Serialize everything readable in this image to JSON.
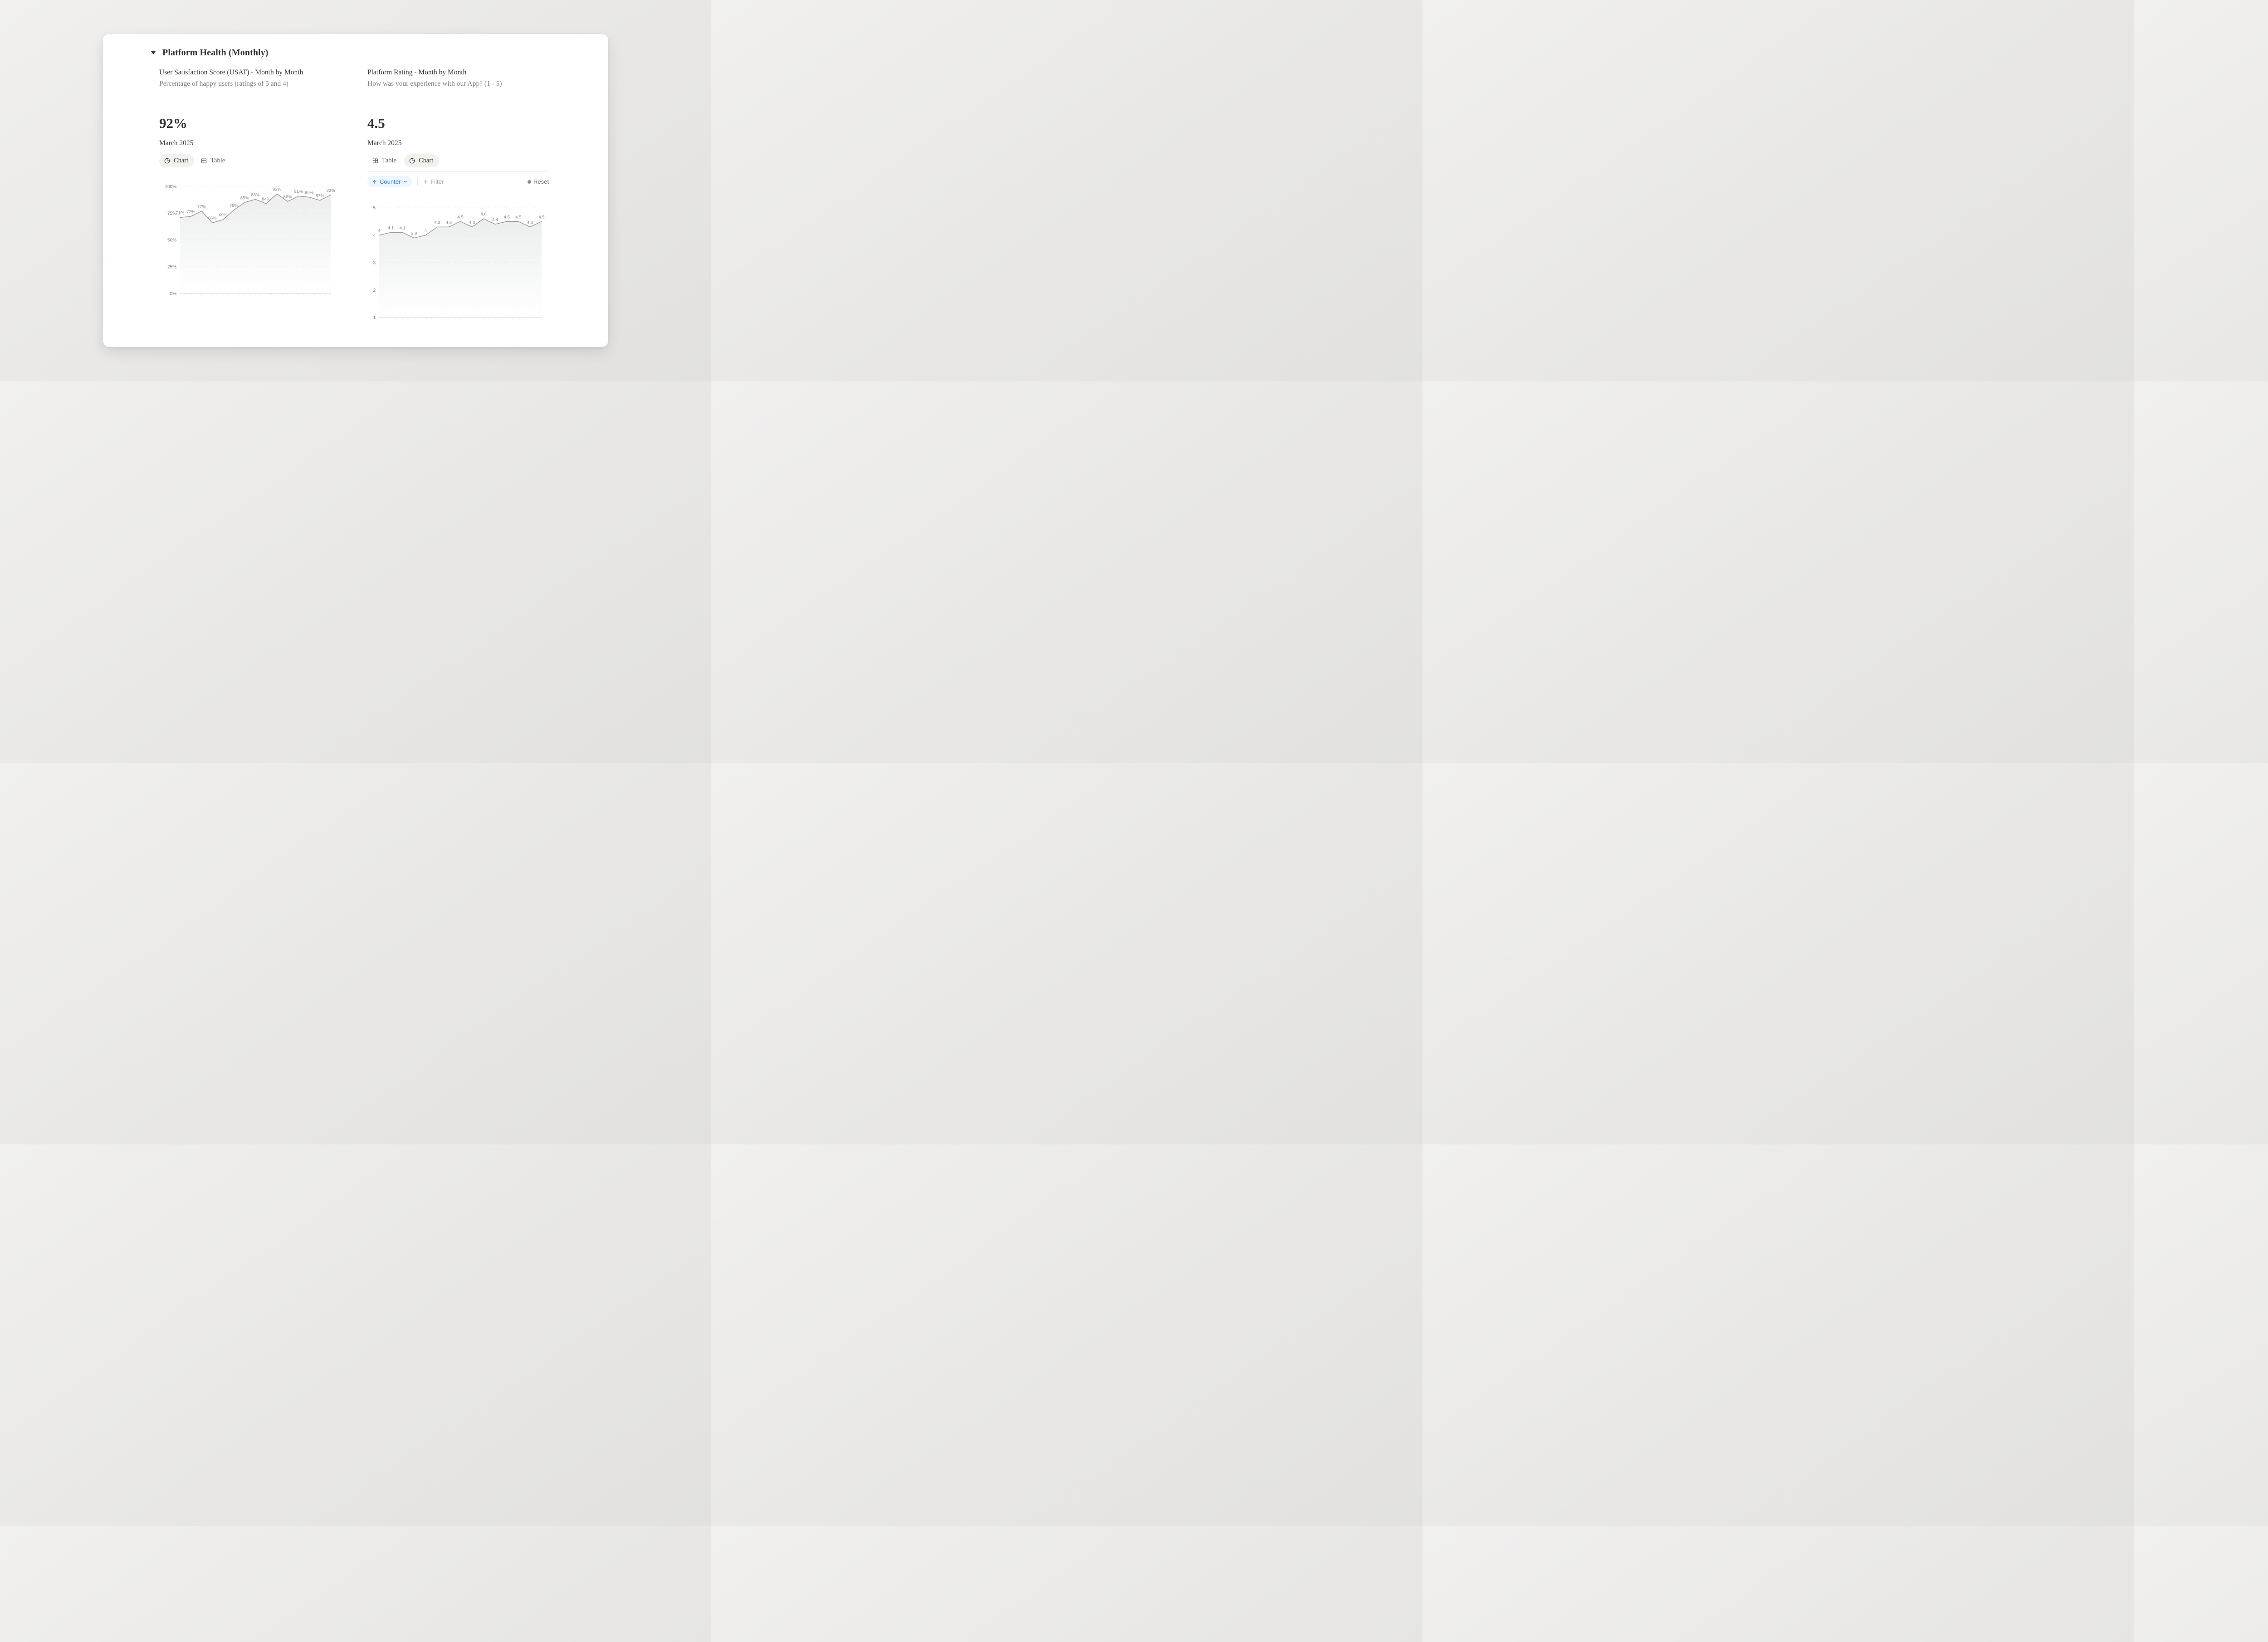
{
  "header": {
    "title": "Platform Health (Monthly)"
  },
  "left_panel": {
    "title": "User Satisfaction Score (USAT) - Month by Month",
    "subtitle": "Percentage of happy users (ratings of 5 and 4)",
    "metric_value": "92%",
    "metric_period": "March 2025",
    "tabs": [
      {
        "label": "Chart",
        "active": true
      },
      {
        "label": "Table",
        "active": false
      }
    ]
  },
  "right_panel": {
    "title": "Platform Rating - Month by Month",
    "subtitle": "How was your experience with our App? (1 - 5)",
    "metric_value": "4.5",
    "metric_period": "March 2025",
    "tabs": [
      {
        "label": "Table",
        "active": false
      },
      {
        "label": "Chart",
        "active": true
      }
    ],
    "toolbar": {
      "sort_label": "Counter",
      "filter_label": "Filter",
      "reset_label": "Reset"
    }
  },
  "colors": {
    "accent_blue": "#2383e2",
    "line": "#9a9993",
    "area": "#7f948c",
    "text_dark": "#37352f",
    "text_gray": "#85837c"
  },
  "chart_data": [
    {
      "type": "line",
      "panel": "left",
      "title": "User Satisfaction Score (USAT) - Month by Month",
      "subtitle": "Percentage of happy users (ratings of 5 and 4)",
      "current_value": "92%",
      "period": "March 2025",
      "values": [
        71,
        72,
        77,
        66,
        69,
        78,
        85,
        88,
        84,
        93,
        86,
        91,
        90,
        87,
        92
      ],
      "point_labels": [
        "71%",
        "72%",
        "77%",
        "66%",
        "69%",
        "78%",
        "85%",
        "88%",
        "84%",
        "93%",
        "86%",
        "91%",
        "90%",
        "87%",
        "92%"
      ],
      "ylim": [
        0,
        100
      ],
      "ytick_values": [
        100,
        75,
        50,
        25,
        0
      ],
      "ytick_labels": [
        "100%",
        "75%",
        "50%",
        "25%",
        "0%"
      ],
      "x_axis_labels": "none",
      "grid": "dotted-horizontal",
      "legend": "none",
      "area": true
    },
    {
      "type": "line",
      "panel": "right",
      "title": "Platform Rating - Month by Month",
      "subtitle": "How was your experience with our App? (1 - 5)",
      "current_value": "4.5",
      "period": "March 2025",
      "values": [
        4,
        4.1,
        4.1,
        3.9,
        4,
        4.3,
        4.3,
        4.5,
        4.3,
        4.6,
        4.4,
        4.5,
        4.5,
        4.3,
        4.5
      ],
      "point_labels": [
        "4",
        "4.1",
        "4.1",
        "3.9",
        "4",
        "4.3",
        "4.3",
        "4.5",
        "4.3",
        "4.6",
        "4.4",
        "4.5",
        "4.5",
        "4.3",
        "4.5"
      ],
      "ylim": [
        1,
        5
      ],
      "ytick_values": [
        5,
        4,
        3,
        2,
        1
      ],
      "ytick_labels": [
        "5",
        "4",
        "3",
        "2",
        "1"
      ],
      "x_axis_labels": "none",
      "grid": "dotted-horizontal",
      "legend": "none",
      "area": true
    }
  ]
}
